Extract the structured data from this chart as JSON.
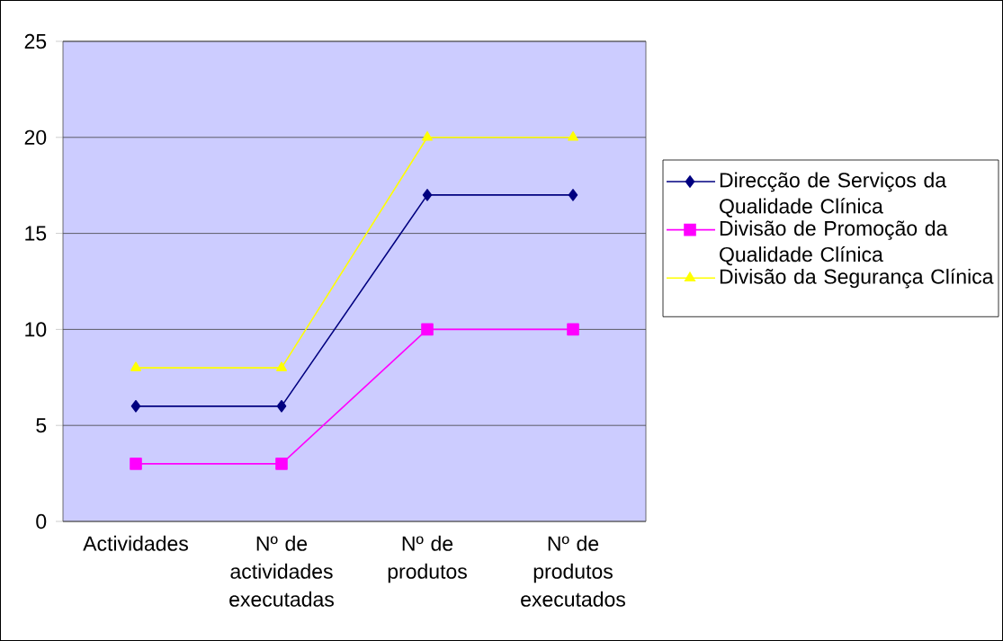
{
  "chart_data": {
    "type": "line",
    "categories": [
      "Actividades",
      "Nº de actividades executadas",
      "Nº de produtos",
      "Nº de produtos executados"
    ],
    "series": [
      {
        "name": "Direcção de Serviços da Qualidade Clínica",
        "color": "#000080",
        "marker": "diamond",
        "values": [
          6,
          6,
          17,
          17
        ]
      },
      {
        "name": "Divisão de Promoção da Qualidade Clínica",
        "color": "#ff00ff",
        "marker": "square",
        "values": [
          3,
          3,
          10,
          10
        ]
      },
      {
        "name": "Divisão da Segurança Clínica",
        "color": "#ffff00",
        "marker": "triangle",
        "values": [
          8,
          8,
          20,
          20
        ]
      }
    ],
    "ylim": [
      0,
      25
    ],
    "yticks": [
      0,
      5,
      10,
      15,
      20,
      25
    ],
    "grid": "y",
    "legend": "right",
    "line_style": "solid"
  }
}
